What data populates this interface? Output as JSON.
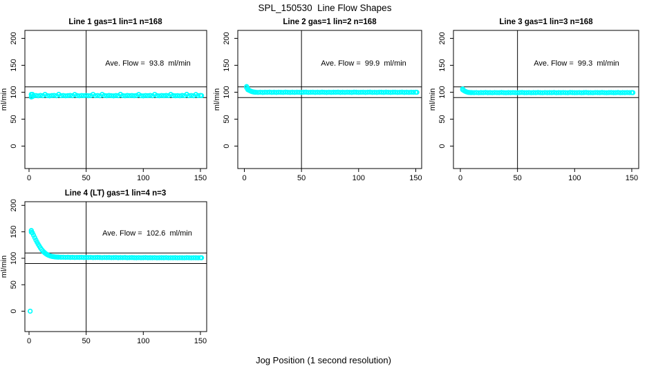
{
  "chart_data": {
    "type": "scatter",
    "title": "SPL_150530  Line Flow Shapes",
    "xlabel": "Jog Position (1 second resolution)",
    "ylabel": "ml/min",
    "point_color": "#00FFFF",
    "axis_color": "#000000",
    "x_ticks": [
      0,
      50,
      100,
      150
    ],
    "y_ticks": [
      0,
      50,
      100,
      150,
      200
    ],
    "ref_lines": {
      "vline_x": 50,
      "hlines_y": [
        90,
        110
      ]
    },
    "legend": "none",
    "grid": "off",
    "panels": [
      {
        "title": "Line 1 gas=1 lin=1 n=168",
        "annotation": "Ave. Flow =  93.8  ml/min",
        "ave_flow_ml_min": 93.8,
        "n": 168,
        "series": {
          "x_start": 2,
          "x_step": 2,
          "y": [
            96.0,
            93.4,
            93.9,
            93.3,
            94.0,
            93.5,
            95.9,
            93.7,
            93.2,
            93.8,
            94.1,
            93.4,
            96.1,
            93.6,
            93.9,
            93.3,
            93.7,
            94.0,
            93.5,
            95.8,
            93.8,
            93.3,
            93.9,
            93.6,
            94.1,
            93.4,
            93.7,
            96.0,
            93.5,
            93.9,
            93.3,
            95.9,
            93.8,
            93.4,
            94.0,
            93.6,
            93.2,
            93.8,
            93.5,
            96.1,
            93.7,
            93.3,
            94.0,
            93.6,
            93.9,
            93.4,
            93.8,
            95.8,
            93.5,
            93.2,
            93.9,
            93.6,
            94.1,
            93.4,
            96.0,
            93.7,
            93.3,
            93.9,
            93.5,
            94.0,
            93.6,
            95.9,
            93.8,
            93.4,
            93.7,
            93.3,
            94.0,
            93.6,
            96.1,
            93.5,
            93.9,
            93.4,
            95.8,
            93.7,
            94.0
          ]
        },
        "extra_points": [
          [
            2,
            91.2
          ],
          [
            2,
            95.6
          ],
          [
            3,
            92.0
          ],
          [
            3,
            95.9
          ],
          [
            151,
            93.7
          ]
        ]
      },
      {
        "title": "Line 2 gas=1 lin=2 n=168",
        "annotation": "Ave. Flow =  99.9  ml/min",
        "ave_flow_ml_min": 99.9,
        "n": 168,
        "series": {
          "x_start": 10,
          "x_step": 2,
          "y": [
            99.9,
            99.7,
            100.0,
            99.6,
            99.9,
            99.8,
            100.1,
            99.7,
            99.9,
            99.6,
            100.0,
            99.8,
            99.7,
            100.1,
            99.8,
            99.6,
            99.9,
            99.7,
            100.0,
            99.8,
            99.6,
            99.9,
            100.1,
            99.7,
            99.8,
            100.0,
            99.6,
            99.9,
            99.7,
            100.1,
            99.8,
            99.6,
            100.0,
            99.7,
            99.9,
            99.8,
            100.1,
            99.6,
            99.9,
            99.7,
            100.0,
            99.8,
            99.6,
            100.1,
            99.9,
            99.7,
            99.8,
            100.0,
            99.6,
            99.9,
            100.1,
            99.7,
            99.8,
            99.6,
            100.0,
            99.9,
            99.7,
            100.1,
            99.8,
            99.6,
            99.9,
            100.0,
            99.7,
            99.8,
            100.1,
            99.6,
            99.9,
            99.7,
            100.0,
            99.8,
            99.9
          ]
        },
        "extra_points": [
          [
            2,
            110.5
          ],
          [
            2,
            108.5
          ],
          [
            3,
            106.5
          ],
          [
            3,
            104.8
          ],
          [
            4,
            103.6
          ],
          [
            5,
            102.6
          ],
          [
            6,
            101.6
          ],
          [
            7,
            100.9
          ],
          [
            8,
            100.4
          ],
          [
            9,
            100.1
          ],
          [
            151,
            99.8
          ]
        ]
      },
      {
        "title": "Line 3 gas=1 lin=3 n=168",
        "annotation": "Ave. Flow =  99.3  ml/min",
        "ave_flow_ml_min": 99.3,
        "n": 168,
        "series": {
          "x_start": 10,
          "x_step": 2,
          "y": [
            99.3,
            99.1,
            99.4,
            99.0,
            99.3,
            99.2,
            99.5,
            99.1,
            99.3,
            99.0,
            99.4,
            99.2,
            99.1,
            99.5,
            99.2,
            99.0,
            99.3,
            99.1,
            99.4,
            99.2,
            99.0,
            99.3,
            99.5,
            99.1,
            99.2,
            99.4,
            99.0,
            99.3,
            99.1,
            99.5,
            99.2,
            99.0,
            99.4,
            99.1,
            99.3,
            99.2,
            99.5,
            99.0,
            99.3,
            99.1,
            99.4,
            99.2,
            99.0,
            99.5,
            99.3,
            99.1,
            99.2,
            99.4,
            99.0,
            99.3,
            99.5,
            99.1,
            99.2,
            99.0,
            99.4,
            99.3,
            99.1,
            99.5,
            99.2,
            99.0,
            99.3,
            99.4,
            99.1,
            99.2,
            99.5,
            99.0,
            99.3,
            99.1,
            99.4,
            99.2,
            99.3
          ]
        },
        "extra_points": [
          [
            2,
            106.0
          ],
          [
            2,
            104.6
          ],
          [
            3,
            103.2
          ],
          [
            4,
            101.9
          ],
          [
            5,
            100.9
          ],
          [
            6,
            100.2
          ],
          [
            7,
            99.7
          ],
          [
            8,
            99.5
          ],
          [
            9,
            99.3
          ],
          [
            151,
            99.2
          ]
        ]
      },
      {
        "title": "Line 4 (LT) gas=1 lin=4 n=3",
        "annotation": "Ave. Flow =  102.6  ml/min",
        "ave_flow_ml_min": 102.6,
        "n": 3,
        "series": {
          "x_start": 26,
          "x_step": 2,
          "y": [
            102.1,
            101.9,
            102.0,
            101.7,
            101.9,
            101.6,
            101.8,
            101.5,
            101.7,
            101.6,
            101.8,
            101.4,
            101.6,
            101.5,
            101.7,
            101.3,
            101.5,
            101.6,
            101.4,
            101.2,
            101.5,
            101.3,
            101.4,
            101.2,
            101.3,
            101.5,
            101.1,
            101.3,
            101.2,
            101.4,
            101.0,
            101.2,
            101.3,
            101.1,
            100.9,
            101.2,
            101.0,
            101.1,
            101.3,
            100.9,
            101.1,
            101.0,
            101.2,
            100.8,
            101.0,
            101.1,
            100.9,
            101.2,
            100.8,
            101.0,
            100.9,
            101.1,
            100.8,
            101.0,
            100.9,
            100.8,
            101.1,
            100.9,
            100.8,
            101.0,
            100.9,
            100.8,
            101.0
          ]
        },
        "extra_points": [
          [
            2,
            152.5
          ],
          [
            2,
            149.5
          ],
          [
            3,
            148.0
          ],
          [
            4,
            143.5
          ],
          [
            5,
            139.0
          ],
          [
            6,
            134.5
          ],
          [
            7,
            130.5
          ],
          [
            8,
            126.5
          ],
          [
            9,
            123.0
          ],
          [
            10,
            119.5
          ],
          [
            11,
            116.5
          ],
          [
            12,
            114.0
          ],
          [
            13,
            111.8
          ],
          [
            14,
            109.8
          ],
          [
            15,
            108.2
          ],
          [
            16,
            106.8
          ],
          [
            17,
            105.7
          ],
          [
            18,
            104.8
          ],
          [
            19,
            104.1
          ],
          [
            20,
            103.5
          ],
          [
            21,
            103.1
          ],
          [
            22,
            102.8
          ],
          [
            23,
            102.5
          ],
          [
            24,
            102.3
          ],
          [
            25,
            102.2
          ],
          [
            151,
            100.9
          ]
        ],
        "outlier_points": [
          [
            1,
            0
          ]
        ]
      }
    ]
  }
}
